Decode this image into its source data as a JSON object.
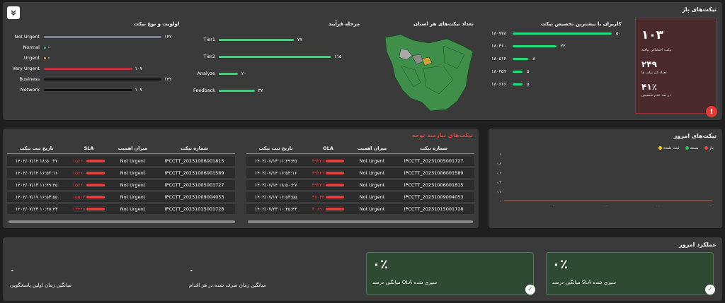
{
  "open_tickets": {
    "title": "تیکت‌های باز",
    "kpis": [
      {
        "value": "۱۰۳",
        "label": "تیکت اختصاص نیافته"
      },
      {
        "value": "۲۴۹",
        "label": "تعداد کل تیکت ها"
      },
      {
        "value": "۴۱٪",
        "label": "در صد عدم تخصیص"
      }
    ],
    "users_title": "کاربران با بیشترین تخصیص تیکت",
    "users": [
      {
        "name": "۱۸۰۷۷۸",
        "value": "۵۰",
        "frac": 1.0
      },
      {
        "name": "۱۸۰۳۶۰",
        "value": "۲۲",
        "frac": 0.44
      },
      {
        "name": "۱۸۰۵۱۴",
        "value": "۸",
        "frac": 0.16
      },
      {
        "name": "۱۸۰۴۵۹",
        "value": "۵",
        "frac": 0.1
      },
      {
        "name": "۱۸۰۶۶۶",
        "value": "۵",
        "frac": 0.1
      }
    ],
    "map_title": "تعداد تیکت‌های هر استان",
    "process_title": "مرحله فرآیند",
    "process": [
      {
        "name": "Tier1",
        "value": "۷۷",
        "frac": 0.67
      },
      {
        "name": "Tier2",
        "value": "۱۱۵",
        "frac": 1.0
      },
      {
        "name": "Analyze",
        "value": "۲۰",
        "frac": 0.17
      },
      {
        "name": "Feedback",
        "value": "۳۷",
        "frac": 0.32
      }
    ],
    "priority_title": "اولویت و نوع تیکت",
    "priority": [
      {
        "name": "Not Urgent",
        "value": "۱۴۲",
        "frac": 1.0,
        "color": "#7a7f93"
      },
      {
        "name": "Normal",
        "value": "",
        "frac": 0.0,
        "color": "#22c55e"
      },
      {
        "name": "Urgent",
        "value": "",
        "frac": 0.0,
        "color": "#f59e0b"
      },
      {
        "name": "Very Urgent",
        "value": "۱۰۷",
        "frac": 0.75,
        "color": "#c0303a"
      },
      {
        "name": "Business",
        "value": "۱۴۲",
        "frac": 1.0,
        "color": "#111111"
      },
      {
        "name": "Network",
        "value": "۱۰۷",
        "frac": 0.75,
        "color": "#111111"
      }
    ]
  },
  "attention": {
    "title": "تیکت‌های نیازمند توجه",
    "left_headers": [
      "تاریخ ثبت تیکت",
      "SLA",
      "میزان اهمیت",
      "شماره تیکت"
    ],
    "left_rows": [
      [
        "۱۴۰۲/۰۷/۱۴ ۱۸:۵۰:۲۷",
        "۱۵۶۶۰",
        "Not Urgent",
        "IPCCTT_20231006001815"
      ],
      [
        "۱۴۰۲/۰۷/۱۴ ۱۶:۵۲:۱۶",
        "۱۵۶۶۰",
        "Not Urgent",
        "IPCCTT_20231006001589"
      ],
      [
        "۱۴۰۲/۰۷/۱۳ ۱۱:۴۹:۴۵",
        "۱۵۶۶۰",
        "Not Urgent",
        "IPCCTT_20231005001727"
      ],
      [
        "۱۴۰۲/۰۷/۱۷ ۱۶:۵۳:۵۵",
        "۱۵۵۱۷",
        "Not Urgent",
        "IPCCTT_20231009004053"
      ],
      [
        "۱۴۰۲/۰۷/۲۳ ۱۰:۴۵:۴۳",
        "۱۳۴۳۵",
        "Not Urgent",
        "IPCCTT_20231015001728"
      ]
    ],
    "right_headers": [
      "تاریخ ثبت تیکت",
      "OLA",
      "میزان اهمیت",
      "شماره تیکت"
    ],
    "right_rows": [
      [
        "۱۴۰۲/۰۷/۱۳ ۱۱:۴۹:۴۵",
        "۳۹۲۲۱",
        "Not Urgent",
        "IPCCTT_20231005001727"
      ],
      [
        "۱۴۰۲/۰۷/۱۴ ۱۶:۵۲:۱۶",
        "۳۹۲۲۱",
        "Not Urgent",
        "IPCCTT_20231006001589"
      ],
      [
        "۱۴۰۲/۰۷/۱۴ ۱۸:۵۰:۲۷",
        "۳۹۲۲۱",
        "Not Urgent",
        "IPCCTT_20231006001815"
      ],
      [
        "۱۴۰۲/۰۷/۱۷ ۱۶:۵۳:۵۵",
        "۳۸۰۳۴",
        "Not Urgent",
        "IPCCTT_20231009004053"
      ],
      [
        "۱۴۰۲/۰۷/۲۳ ۱۰:۴۵:۴۳",
        "۳۰۶۹۰",
        "Not Urgent",
        "IPCCTT_20231015001728"
      ]
    ]
  },
  "today_tickets": {
    "title": "تیکت‌های امروز",
    "legend": [
      {
        "name": "ثبت شده",
        "color": "#facc15"
      },
      {
        "name": "بسته",
        "color": "#22c55e"
      },
      {
        "name": "باز",
        "color": "#ef4444"
      }
    ]
  },
  "chart_data": {
    "type": "line",
    "x": [
      "۰:۰۰",
      "۶:۰۰",
      "۱۲:۰۰",
      "۱۸:۰۰",
      "۲۴:۰۰"
    ],
    "yticks": [
      "۰",
      "۰.۲",
      "۰.۴",
      "۰.۶",
      "۰.۸",
      "۱"
    ],
    "ylim": [
      0,
      1
    ],
    "series": [
      {
        "name": "ثبت شده",
        "values": [
          0,
          0,
          0,
          0,
          0
        ]
      },
      {
        "name": "بسته",
        "values": [
          0,
          0,
          0,
          0,
          0
        ]
      },
      {
        "name": "باز",
        "values": [
          0,
          0,
          0,
          0,
          0
        ]
      }
    ]
  },
  "performance": {
    "title": "عملکرد امروز",
    "sla_card": {
      "value": "۰٪",
      "label": "میانگین درصد SLA سپری شده"
    },
    "ola_card": {
      "value": "۰٪",
      "label": "میانگین درصد OLA سپری شده"
    },
    "action_time": {
      "value": "۰",
      "label": "میانگین زمان صرف شده در هر اقدام"
    },
    "first_response": {
      "value": "۰",
      "label": "میانگین زمان اولین پاسخگویی"
    }
  },
  "colors": {
    "accent": "#22e07a",
    "danger": "#e53935",
    "panel": "#3a3a3a"
  }
}
